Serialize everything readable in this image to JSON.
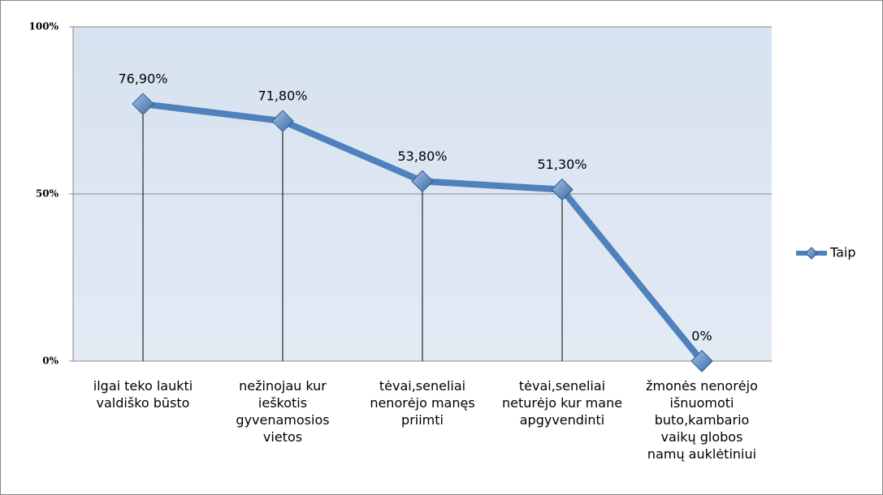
{
  "chart_data": {
    "type": "line",
    "categories": [
      "ilgai teko laukti valdiško būsto",
      "nežinojau kur ieškotis gyvenamosios vietos",
      "tėvai,seneliai nenorėjo manęs priimti",
      "tėvai,seneliai neturėjo kur mane apgyvendinti",
      "žmonės nenorėjo išnuomoti buto,kambario vaikų globos namų auklėtiniui"
    ],
    "series": [
      {
        "name": "Taip",
        "color": "#4f81bd",
        "values": [
          76.9,
          71.8,
          53.8,
          51.3,
          0
        ],
        "value_labels": [
          "76,90%",
          "71,80%",
          "53,80%",
          "51,30%",
          "0%"
        ]
      }
    ],
    "ylim": [
      0,
      100
    ],
    "yticks": [
      {
        "value": 0,
        "label": "0%"
      },
      {
        "value": 50,
        "label": "50%"
      },
      {
        "value": 100,
        "label": "100%"
      }
    ],
    "grid": true,
    "legend": "right"
  }
}
